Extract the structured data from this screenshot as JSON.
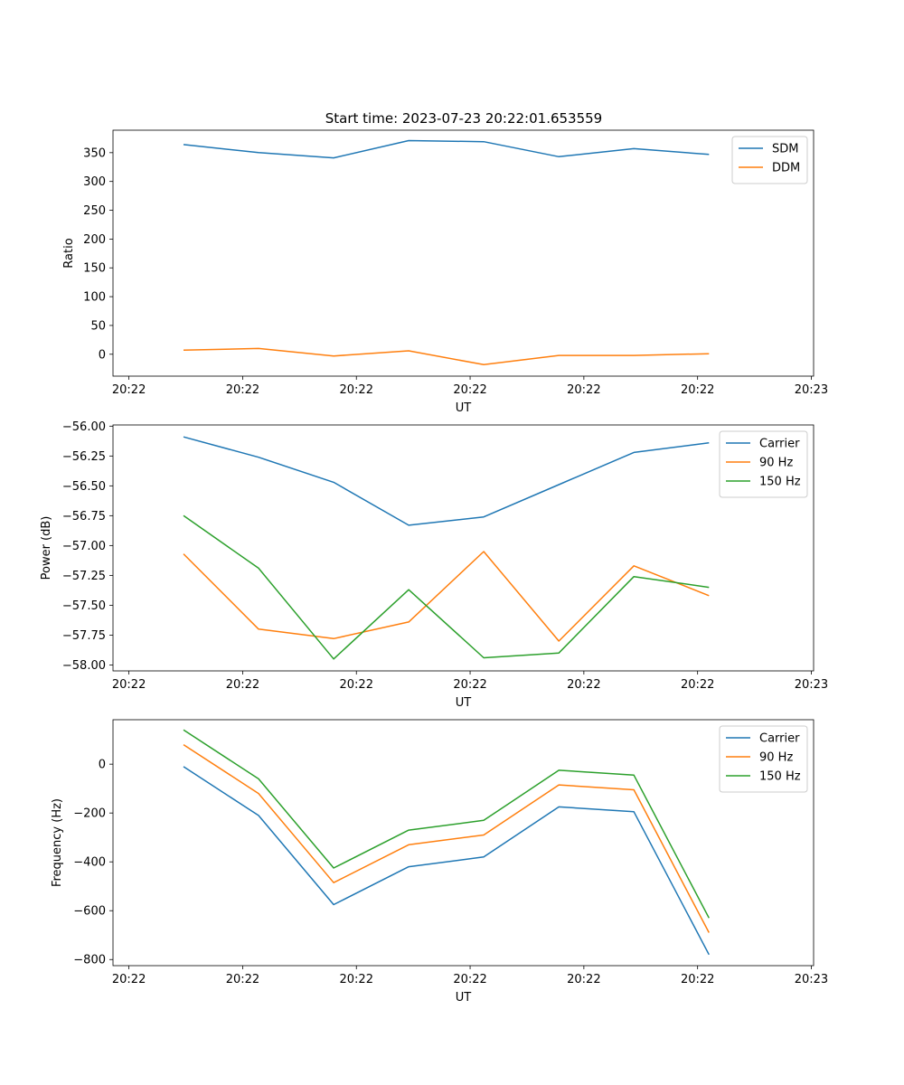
{
  "chart_data": [
    {
      "type": "line",
      "title": "Start time: 2023-07-23 20:22:01.653559",
      "xlabel": "UT",
      "ylabel": "Ratio",
      "x_tick_labels": [
        "20:22",
        "20:22",
        "20:22",
        "20:22",
        "20:22",
        "20:22",
        "20:23"
      ],
      "x_ticks": [
        0,
        5,
        10,
        15,
        20,
        25,
        30
      ],
      "xlim": [
        -0.7,
        30.1
      ],
      "ylim": [
        -38,
        389
      ],
      "y_ticks": [
        0,
        50,
        100,
        150,
        200,
        250,
        300,
        350
      ],
      "y_tick_labels": [
        "0",
        "50",
        "100",
        "150",
        "200",
        "250",
        "300",
        "350"
      ],
      "legend": "top-right",
      "x": [
        2.4,
        5.7,
        9.0,
        12.3,
        15.6,
        18.9,
        22.2,
        25.5
      ],
      "series": [
        {
          "name": "SDM",
          "color": "#1f77b4",
          "values": [
            364,
            350,
            341,
            371,
            369,
            343,
            357,
            347
          ]
        },
        {
          "name": "DDM",
          "color": "#ff7f0e",
          "values": [
            7,
            10,
            -3,
            6,
            -18,
            -2,
            -2,
            1
          ]
        }
      ]
    },
    {
      "type": "line",
      "title": "",
      "xlabel": "UT",
      "ylabel": "Power (dB)",
      "x_tick_labels": [
        "20:22",
        "20:22",
        "20:22",
        "20:22",
        "20:22",
        "20:22",
        "20:23"
      ],
      "x_ticks": [
        0,
        5,
        10,
        15,
        20,
        25,
        30
      ],
      "xlim": [
        -0.7,
        30.1
      ],
      "ylim": [
        -58.05,
        -55.99
      ],
      "y_ticks": [
        -58.0,
        -57.75,
        -57.5,
        -57.25,
        -57.0,
        -56.75,
        -56.5,
        -56.25,
        -56.0
      ],
      "y_tick_labels": [
        "−58.00",
        "−57.75",
        "−57.50",
        "−57.25",
        "−57.00",
        "−56.75",
        "−56.50",
        "−56.25",
        "−56.00"
      ],
      "legend": "top-right",
      "x": [
        2.4,
        5.7,
        9.0,
        12.3,
        15.6,
        18.9,
        22.2,
        25.5
      ],
      "series": [
        {
          "name": "Carrier",
          "color": "#1f77b4",
          "values": [
            -56.09,
            -56.26,
            -56.47,
            -56.83,
            -56.76,
            -56.49,
            -56.22,
            -56.14
          ]
        },
        {
          "name": "90 Hz",
          "color": "#ff7f0e",
          "values": [
            -57.07,
            -57.7,
            -57.78,
            -57.64,
            -57.05,
            -57.8,
            -57.17,
            -57.42
          ]
        },
        {
          "name": "150 Hz",
          "color": "#2ca02c",
          "values": [
            -56.75,
            -57.19,
            -57.95,
            -57.37,
            -57.94,
            -57.9,
            -57.26,
            -57.35
          ]
        }
      ]
    },
    {
      "type": "line",
      "title": "",
      "xlabel": "UT",
      "ylabel": "Frequency (Hz)",
      "x_tick_labels": [
        "20:22",
        "20:22",
        "20:22",
        "20:22",
        "20:22",
        "20:22",
        "20:23"
      ],
      "x_ticks": [
        0,
        5,
        10,
        15,
        20,
        25,
        30
      ],
      "xlim": [
        -0.7,
        30.1
      ],
      "ylim": [
        -825,
        182
      ],
      "y_ticks": [
        -800,
        -600,
        -400,
        -200,
        0
      ],
      "y_tick_labels": [
        "−800",
        "−600",
        "−400",
        "−200",
        "0"
      ],
      "legend": "top-right",
      "x": [
        2.4,
        5.7,
        9.0,
        12.3,
        15.6,
        18.9,
        22.2,
        25.5
      ],
      "series": [
        {
          "name": "Carrier",
          "color": "#1f77b4",
          "values": [
            -10,
            -210,
            -575,
            -420,
            -380,
            -175,
            -195,
            -780
          ]
        },
        {
          "name": "90 Hz",
          "color": "#ff7f0e",
          "values": [
            80,
            -120,
            -485,
            -330,
            -290,
            -85,
            -105,
            -690
          ]
        },
        {
          "name": "150 Hz",
          "color": "#2ca02c",
          "values": [
            140,
            -60,
            -425,
            -270,
            -230,
            -25,
            -45,
            -630
          ]
        }
      ]
    }
  ]
}
